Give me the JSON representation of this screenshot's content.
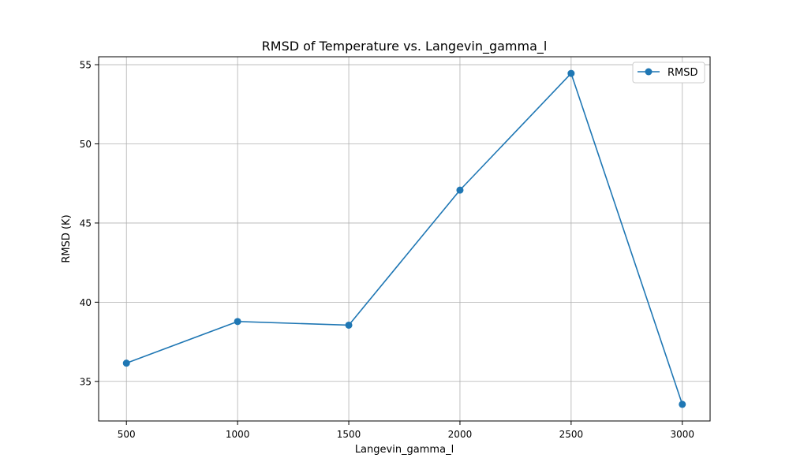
{
  "chart_data": {
    "type": "line",
    "title": "RMSD of Temperature vs. Langevin_gamma_l",
    "xlabel": "Langevin_gamma_l",
    "ylabel": "RMSD (K)",
    "x": [
      500,
      1000,
      1500,
      2000,
      2500,
      3000
    ],
    "series": [
      {
        "name": "RMSD",
        "color": "#1f77b4",
        "values": [
          36.15,
          38.78,
          38.55,
          47.08,
          54.45,
          33.55
        ]
      }
    ],
    "xlim": [
      375,
      3125
    ],
    "ylim": [
      32.5,
      55.5
    ],
    "xticks": [
      500,
      1000,
      1500,
      2000,
      2500,
      3000
    ],
    "yticks": [
      35,
      40,
      45,
      50,
      55
    ],
    "grid": true,
    "legend_position": "top-right"
  }
}
